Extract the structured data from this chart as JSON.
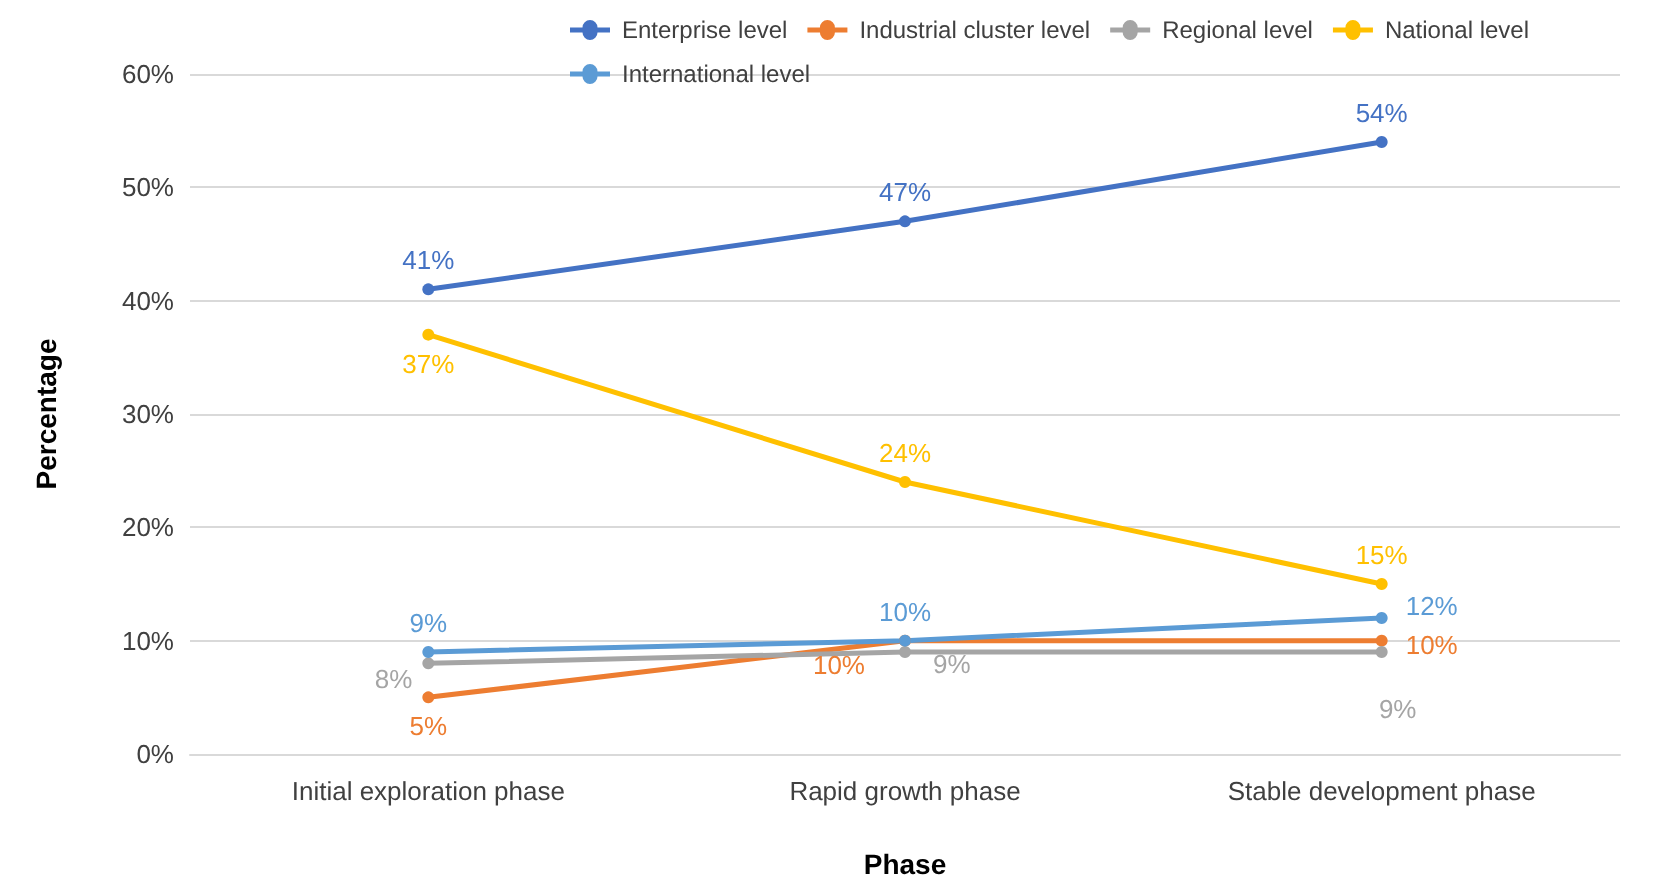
{
  "chart_data": {
    "type": "line",
    "xlabel": "Phase",
    "ylabel": "Percentage",
    "categories": [
      "Initial exploration phase",
      "Rapid growth phase",
      "Stable development phase"
    ],
    "series": [
      {
        "name": "Enterprise level",
        "color": "#4472c4",
        "values": [
          41,
          47,
          54
        ],
        "value_labels": [
          "41%",
          "47%",
          "54%"
        ]
      },
      {
        "name": "Industrial cluster level",
        "color": "#ed7d31",
        "values": [
          5,
          10,
          10
        ],
        "value_labels": [
          "5%",
          "10%",
          "10%"
        ]
      },
      {
        "name": "Regional level",
        "color": "#a5a5a5",
        "values": [
          8,
          9,
          9
        ],
        "value_labels": [
          "8%",
          "9%",
          "9%"
        ]
      },
      {
        "name": "National level",
        "color": "#ffc000",
        "values": [
          37,
          24,
          15
        ],
        "value_labels": [
          "37%",
          "24%",
          "15%"
        ]
      },
      {
        "name": "International level",
        "color": "#5b9bd5",
        "values": [
          9,
          10,
          12
        ],
        "value_labels": [
          "9%",
          "10%",
          "12%"
        ]
      }
    ],
    "ylim": [
      0,
      60
    ],
    "yticks": [
      {
        "value": 0,
        "label": "0%"
      },
      {
        "value": 10,
        "label": "10%"
      },
      {
        "value": 20,
        "label": "20%"
      },
      {
        "value": 30,
        "label": "30%"
      },
      {
        "value": 40,
        "label": "40%"
      },
      {
        "value": 50,
        "label": "50%"
      },
      {
        "value": 60,
        "label": "60%"
      }
    ],
    "grid": "y",
    "legend": "top",
    "marker": "circle",
    "line_style": "solid"
  }
}
